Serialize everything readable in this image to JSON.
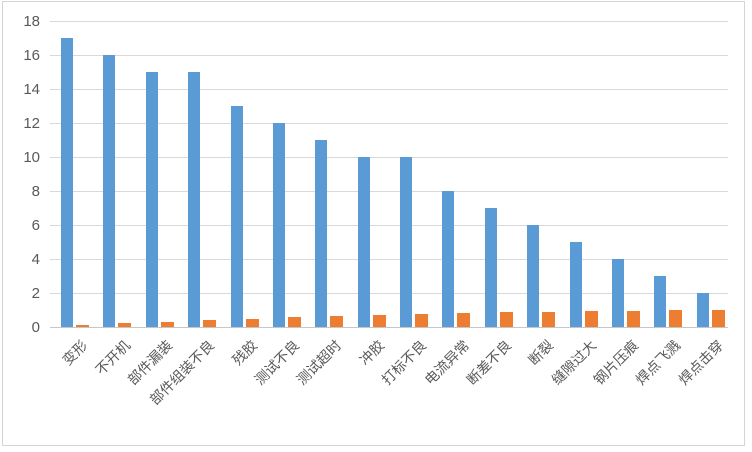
{
  "chart_data": {
    "type": "bar",
    "title": "",
    "xlabel": "",
    "ylabel": "",
    "categories": [
      "变形",
      "不开机",
      "部件漏装",
      "部件组装不良",
      "残胶",
      "测试不良",
      "测试超时",
      "冲胶",
      "打标不良",
      "电流异常",
      "断差不良",
      "断裂",
      "缝隙过大",
      "钢片压痕",
      "焊点飞溅",
      "焊点击穿"
    ],
    "series": [
      {
        "id": "defect-count",
        "color": "#5B9BD5",
        "values": [
          17,
          16,
          15,
          15,
          13,
          12,
          11,
          10,
          10,
          8,
          7,
          6,
          5,
          4,
          3,
          2
        ]
      },
      {
        "id": "cumulative-ratio",
        "color": "#ED7D31",
        "values": [
          0.11,
          0.21,
          0.31,
          0.41,
          0.49,
          0.57,
          0.64,
          0.71,
          0.77,
          0.82,
          0.87,
          0.91,
          0.94,
          0.97,
          0.99,
          1.0
        ]
      }
    ],
    "ylim": [
      0,
      18
    ],
    "yticks": [
      0,
      2,
      4,
      6,
      8,
      10,
      12,
      14,
      16,
      18
    ],
    "grid": true,
    "legend": false
  },
  "colors": {
    "blue_bar": "#5B9BD5",
    "orange_bar": "#ED7D31",
    "gridline": "#d9d9d9",
    "axis_baseline": "#c6c6ca",
    "axis_text": "#595959",
    "frame_border": "#d4d4d8",
    "background": "#ffffff"
  }
}
